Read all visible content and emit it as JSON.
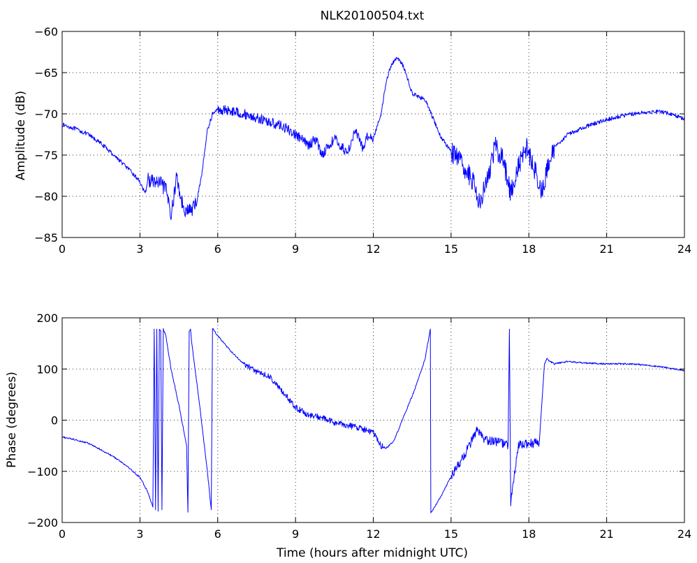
{
  "chart_data": [
    {
      "type": "line",
      "title": "NLK20100504.txt",
      "xlabel": "",
      "ylabel": "Amplitude (dB)",
      "xlim": [
        0,
        24
      ],
      "ylim": [
        -85,
        -60
      ],
      "xticks": [
        0,
        3,
        6,
        9,
        12,
        15,
        18,
        21,
        24
      ],
      "yticks": [
        -85,
        -80,
        -75,
        -70,
        -65,
        -60
      ],
      "xtick_labels": [
        "0",
        "3",
        "6",
        "9",
        "12",
        "15",
        "18",
        "21",
        "24"
      ],
      "ytick_labels": [
        "−85",
        "−80",
        "−75",
        "−70",
        "−65",
        "−60"
      ],
      "grid": true,
      "series_color": "#0000ff",
      "series": [
        {
          "name": "",
          "x": [
            0,
            0.5,
            1,
            1.5,
            2,
            2.5,
            3,
            3.2,
            3.3,
            3.5,
            3.8,
            4.0,
            4.2,
            4.3,
            4.4,
            4.6,
            4.8,
            4.9,
            5.0,
            5.2,
            5.4,
            5.6,
            5.8,
            6.0,
            6.5,
            7.0,
            7.5,
            8.0,
            8.5,
            9.0,
            9.5,
            9.8,
            10.0,
            10.5,
            11.0,
            11.3,
            11.6,
            11.8,
            12.0,
            12.3,
            12.5,
            12.7,
            12.9,
            13.1,
            13.3,
            13.5,
            13.8,
            14.0,
            14.3,
            14.6,
            15.0,
            15.5,
            15.8,
            16.1,
            16.4,
            16.7,
            17.0,
            17.3,
            17.6,
            17.9,
            18.2,
            18.5,
            18.7,
            19.0,
            19.5,
            20.0,
            20.5,
            21.0,
            21.5,
            22.0,
            22.5,
            23.0,
            23.5,
            24.0
          ],
          "y": [
            -71.3,
            -71.8,
            -72.5,
            -73.6,
            -75.0,
            -76.5,
            -78.2,
            -79.8,
            -78.0,
            -78.2,
            -78.5,
            -79.2,
            -82.0,
            -80.5,
            -77.5,
            -80.5,
            -82.0,
            -81.5,
            -81.8,
            -80.5,
            -77.0,
            -72.0,
            -70.0,
            -69.5,
            -69.6,
            -70.0,
            -70.5,
            -71.0,
            -71.5,
            -72.5,
            -73.8,
            -73.0,
            -75.0,
            -73.0,
            -74.8,
            -72.0,
            -74.2,
            -72.5,
            -73.0,
            -70.0,
            -66.0,
            -64.0,
            -63.2,
            -63.8,
            -65.5,
            -67.5,
            -68.0,
            -68.3,
            -70.5,
            -72.8,
            -74.5,
            -76.5,
            -78.0,
            -80.5,
            -78.0,
            -74.0,
            -75.5,
            -79.5,
            -76.5,
            -74.0,
            -76.5,
            -79.5,
            -77.0,
            -74.0,
            -72.5,
            -71.8,
            -71.2,
            -70.7,
            -70.3,
            -70.0,
            -69.8,
            -69.7,
            -70.0,
            -70.6
          ]
        }
      ]
    },
    {
      "type": "line",
      "title": "",
      "xlabel": "Time (hours after midnight UTC)",
      "ylabel": "Phase (degrees)",
      "xlim": [
        0,
        24
      ],
      "ylim": [
        -200,
        200
      ],
      "xticks": [
        0,
        3,
        6,
        9,
        12,
        15,
        18,
        21,
        24
      ],
      "yticks": [
        -200,
        -100,
        0,
        100,
        200
      ],
      "xtick_labels": [
        "0",
        "3",
        "6",
        "9",
        "12",
        "15",
        "18",
        "21",
        "24"
      ],
      "ytick_labels": [
        "−200",
        "−100",
        "0",
        "100",
        "200"
      ],
      "grid": true,
      "series_color": "#0000ff",
      "series": [
        {
          "name": "",
          "x": [
            0,
            0.5,
            1.0,
            1.5,
            2.0,
            2.5,
            3.0,
            3.3,
            3.5,
            3.55,
            3.6,
            3.65,
            3.7,
            3.75,
            3.8,
            3.85,
            3.9,
            4.0,
            4.2,
            4.5,
            4.8,
            4.85,
            4.9,
            4.95,
            5.0,
            5.3,
            5.6,
            5.75,
            5.8,
            5.82,
            6.0,
            6.5,
            7.0,
            7.5,
            8.0,
            8.5,
            9.0,
            9.5,
            10.0,
            10.5,
            11.0,
            11.5,
            12.0,
            12.3,
            12.5,
            12.8,
            13.2,
            13.6,
            14.0,
            14.2,
            14.22,
            14.3,
            14.6,
            15.0,
            15.5,
            15.8,
            16.0,
            16.3,
            16.6,
            17.0,
            17.2,
            17.25,
            17.3,
            17.6,
            18.0,
            18.4,
            18.6,
            18.7,
            18.8,
            19.0,
            19.5,
            20.0,
            21.0,
            22.0,
            23.0,
            24.0
          ],
          "y": [
            -33,
            -38,
            -45,
            -58,
            -72,
            -90,
            -112,
            -140,
            -170,
            178,
            -175,
            178,
            -178,
            178,
            175,
            -175,
            178,
            165,
            100,
            30,
            -50,
            -180,
            175,
            178,
            150,
            30,
            -100,
            -175,
            178,
            178,
            165,
            135,
            110,
            95,
            85,
            55,
            25,
            10,
            5,
            -5,
            -10,
            -15,
            -25,
            -50,
            -55,
            -40,
            10,
            60,
            120,
            178,
            -180,
            -175,
            -150,
            -110,
            -70,
            -40,
            -20,
            -40,
            -40,
            -45,
            -50,
            178,
            -160,
            -50,
            -45,
            -45,
            110,
            120,
            115,
            110,
            115,
            112,
            110,
            110,
            105,
            97
          ]
        }
      ]
    }
  ]
}
